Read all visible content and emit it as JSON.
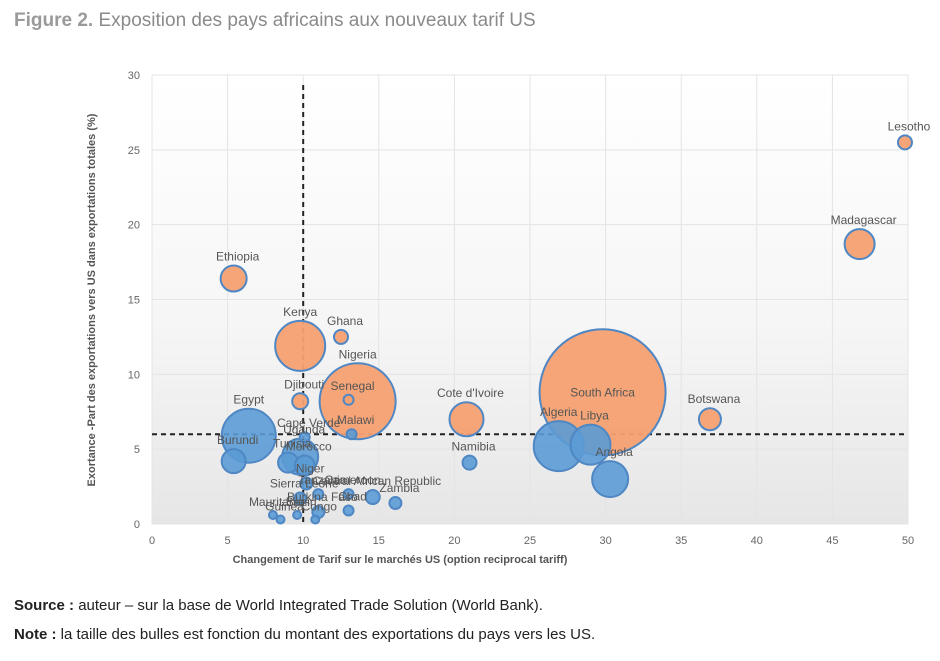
{
  "figure": {
    "label": "Figure 2.",
    "title": "Exposition des pays africains aux nouveaux tarif US"
  },
  "source": {
    "label": "Source :",
    "text": "auteur – sur la base de World Integrated Trade Solution (World Bank)."
  },
  "note": {
    "label": "Note :",
    "text": "la taille des bulles est fonction du montant des exportations du pays vers les US."
  },
  "colors": {
    "blue": "#5b9bd5",
    "orange": "#f4a070",
    "bubble_stroke": "#4f87c4",
    "grid": "#e4e4e4",
    "plot_top": "#ffffff",
    "plot_bottom": "#e9e9e9"
  },
  "chart_data": {
    "type": "scatter",
    "variant": "bubble",
    "title": "",
    "xlabel": "Changement de Tarif  sur le marchés US (option reciprocal tariff)",
    "ylabel": "Exortance -Part des exportations vers US dans exportations totales (%)",
    "xlim": [
      0,
      50
    ],
    "ylim": [
      0,
      30
    ],
    "xticks": [
      0,
      5,
      10,
      15,
      20,
      25,
      30,
      35,
      40,
      45,
      50
    ],
    "yticks": [
      0,
      5,
      10,
      15,
      20,
      25,
      30
    ],
    "grid": true,
    "reference_lines": {
      "x": 10,
      "y": 6
    },
    "points": [
      {
        "label": "Lesotho",
        "x": 49.8,
        "y": 25.5,
        "r": 7,
        "color": "orange"
      },
      {
        "label": "Madagascar",
        "x": 46.8,
        "y": 18.7,
        "r": 15,
        "color": "orange"
      },
      {
        "label": "Ethiopia",
        "x": 5.4,
        "y": 16.4,
        "r": 13,
        "color": "orange"
      },
      {
        "label": "Ghana",
        "x": 12.5,
        "y": 12.5,
        "r": 7,
        "color": "orange"
      },
      {
        "label": "Kenya",
        "x": 9.8,
        "y": 11.9,
        "r": 25,
        "color": "orange"
      },
      {
        "label": "Djibouti",
        "x": 9.8,
        "y": 8.2,
        "r": 8,
        "color": "orange"
      },
      {
        "label": "Senegal",
        "x": 13.0,
        "y": 8.3,
        "r": 5,
        "color": "orange"
      },
      {
        "label": "Nigeria",
        "x": 13.6,
        "y": 8.2,
        "r": 38,
        "color": "orange"
      },
      {
        "label": "Cote d'Ivoire",
        "x": 20.8,
        "y": 7.0,
        "r": 17,
        "color": "orange"
      },
      {
        "label": "South Africa",
        "x": 29.8,
        "y": 8.8,
        "r": 63,
        "color": "orange"
      },
      {
        "label": "Botswana",
        "x": 36.9,
        "y": 7.0,
        "r": 11,
        "color": "orange"
      },
      {
        "label": "Egypt",
        "x": 6.4,
        "y": 5.9,
        "r": 27,
        "color": "blue"
      },
      {
        "label": "Cape Verde",
        "x": 10.1,
        "y": 5.8,
        "r": 5,
        "color": "blue"
      },
      {
        "label": "Malawi",
        "x": 13.2,
        "y": 6.0,
        "r": 5,
        "color": "blue"
      },
      {
        "label": "Burundi",
        "x": 5.4,
        "y": 4.2,
        "r": 12,
        "color": "blue"
      },
      {
        "label": "Tunisia",
        "x": 9.0,
        "y": 4.1,
        "r": 10,
        "color": "blue"
      },
      {
        "label": "Morocco",
        "x": 10.1,
        "y": 3.9,
        "r": 10,
        "color": "blue"
      },
      {
        "label": "Uganda",
        "x": 9.8,
        "y": 4.5,
        "r": 18,
        "color": "blue"
      },
      {
        "label": "Niger",
        "x": 10.2,
        "y": 2.7,
        "r": 6,
        "color": "blue"
      },
      {
        "label": "Namibia",
        "x": 21.0,
        "y": 4.1,
        "r": 7,
        "color": "blue"
      },
      {
        "label": "Algeria",
        "x": 26.9,
        "y": 5.2,
        "r": 25,
        "color": "blue"
      },
      {
        "label": "Libya",
        "x": 29.0,
        "y": 5.3,
        "r": 20,
        "color": "blue"
      },
      {
        "label": "Angola",
        "x": 30.3,
        "y": 3.0,
        "r": 18,
        "color": "blue"
      },
      {
        "label": "Sierra Leone",
        "x": 9.8,
        "y": 1.7,
        "r": 6,
        "color": "blue"
      },
      {
        "label": "Tanzania",
        "x": 11.0,
        "y": 2.0,
        "r": 5,
        "color": "blue"
      },
      {
        "label": "Cameroon",
        "x": 13.0,
        "y": 2.0,
        "r": 5,
        "color": "blue"
      },
      {
        "label": "Central African Republic",
        "x": 14.6,
        "y": 1.8,
        "r": 7,
        "color": "blue"
      },
      {
        "label": "Zambia",
        "x": 16.1,
        "y": 1.4,
        "r": 6,
        "color": "blue"
      },
      {
        "label": "Chad",
        "x": 13.0,
        "y": 0.9,
        "r": 5,
        "color": "blue"
      },
      {
        "label": "Burkina Faso",
        "x": 11.0,
        "y": 0.8,
        "r": 6,
        "color": "blue"
      },
      {
        "label": "Mauritania",
        "x": 8.0,
        "y": 0.6,
        "r": 4,
        "color": "blue"
      },
      {
        "label": "Benin",
        "x": 9.6,
        "y": 0.6,
        "r": 4,
        "color": "blue"
      },
      {
        "label": "Guinea",
        "x": 8.5,
        "y": 0.3,
        "r": 4,
        "color": "blue"
      },
      {
        "label": "Congo",
        "x": 10.8,
        "y": 0.3,
        "r": 4,
        "color": "blue"
      }
    ]
  }
}
